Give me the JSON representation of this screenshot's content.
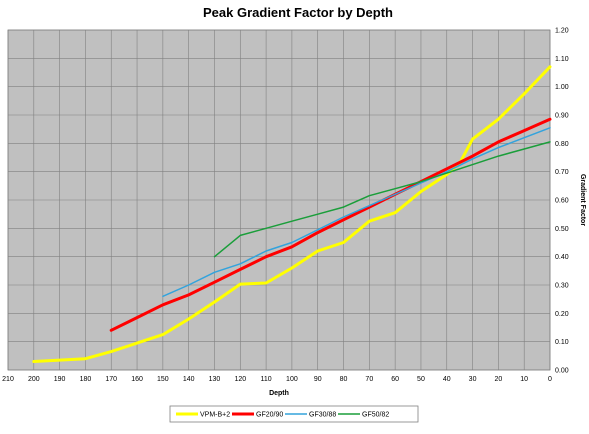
{
  "chart_data": {
    "type": "line",
    "title": "Peak Gradient Factor by Depth",
    "xlabel": "Depth",
    "ylabel": "Gradient Factor",
    "xlim": [
      210,
      0
    ],
    "ylim": [
      0,
      1.2
    ],
    "x_reversed": true,
    "y_axis_side": "right",
    "grid": true,
    "legend_position": "bottom",
    "x_ticks": [
      "210",
      "200",
      "190",
      "180",
      "170",
      "160",
      "150",
      "140",
      "130",
      "120",
      "110",
      "100",
      "90",
      "80",
      "70",
      "60",
      "50",
      "40",
      "30",
      "20",
      "10",
      "0"
    ],
    "y_ticks": [
      "0.00",
      "0.10",
      "0.20",
      "0.30",
      "0.40",
      "0.50",
      "0.60",
      "0.70",
      "0.80",
      "0.90",
      "1.00",
      "1.10",
      "1.20"
    ],
    "colors": {
      "plot_background": "#c0c0c0",
      "gridline": "#808080"
    },
    "series": [
      {
        "name": "VPM-B+2",
        "color": "#ffff00",
        "width": 3,
        "points": [
          [
            200,
            0.03
          ],
          [
            190,
            0.035
          ],
          [
            180,
            0.04
          ],
          [
            170,
            0.065
          ],
          [
            160,
            0.095
          ],
          [
            150,
            0.125
          ],
          [
            140,
            0.18
          ],
          [
            130,
            0.24
          ],
          [
            120,
            0.303
          ],
          [
            110,
            0.307
          ],
          [
            100,
            0.36
          ],
          [
            90,
            0.42
          ],
          [
            80,
            0.45
          ],
          [
            70,
            0.525
          ],
          [
            60,
            0.555
          ],
          [
            50,
            0.63
          ],
          [
            40,
            0.69
          ],
          [
            35,
            0.73
          ],
          [
            30,
            0.815
          ],
          [
            20,
            0.885
          ],
          [
            10,
            0.975
          ],
          [
            0,
            1.07
          ]
        ]
      },
      {
        "name": "GF20/90",
        "color": "#ff0000",
        "width": 3,
        "points": [
          [
            170,
            0.14
          ],
          [
            160,
            0.185
          ],
          [
            150,
            0.23
          ],
          [
            140,
            0.265
          ],
          [
            130,
            0.31
          ],
          [
            120,
            0.355
          ],
          [
            110,
            0.4
          ],
          [
            100,
            0.435
          ],
          [
            90,
            0.485
          ],
          [
            80,
            0.53
          ],
          [
            70,
            0.575
          ],
          [
            60,
            0.62
          ],
          [
            50,
            0.665
          ],
          [
            40,
            0.71
          ],
          [
            30,
            0.755
          ],
          [
            20,
            0.805
          ],
          [
            10,
            0.845
          ],
          [
            0,
            0.885
          ]
        ]
      },
      {
        "name": "GF30/88",
        "color": "#33a3dc",
        "width": 1.5,
        "points": [
          [
            150,
            0.26
          ],
          [
            140,
            0.3
          ],
          [
            130,
            0.345
          ],
          [
            120,
            0.375
          ],
          [
            110,
            0.42
          ],
          [
            100,
            0.45
          ],
          [
            90,
            0.495
          ],
          [
            80,
            0.54
          ],
          [
            70,
            0.58
          ],
          [
            60,
            0.62
          ],
          [
            50,
            0.66
          ],
          [
            40,
            0.7
          ],
          [
            30,
            0.745
          ],
          [
            20,
            0.785
          ],
          [
            10,
            0.82
          ],
          [
            0,
            0.855
          ]
        ]
      },
      {
        "name": "GF50/82",
        "color": "#1a9e3a",
        "width": 1.5,
        "points": [
          [
            130,
            0.4
          ],
          [
            120,
            0.475
          ],
          [
            110,
            0.5
          ],
          [
            100,
            0.525
          ],
          [
            90,
            0.55
          ],
          [
            80,
            0.575
          ],
          [
            70,
            0.615
          ],
          [
            60,
            0.64
          ],
          [
            50,
            0.665
          ],
          [
            40,
            0.695
          ],
          [
            30,
            0.725
          ],
          [
            20,
            0.755
          ],
          [
            10,
            0.78
          ],
          [
            0,
            0.805
          ]
        ]
      }
    ]
  }
}
